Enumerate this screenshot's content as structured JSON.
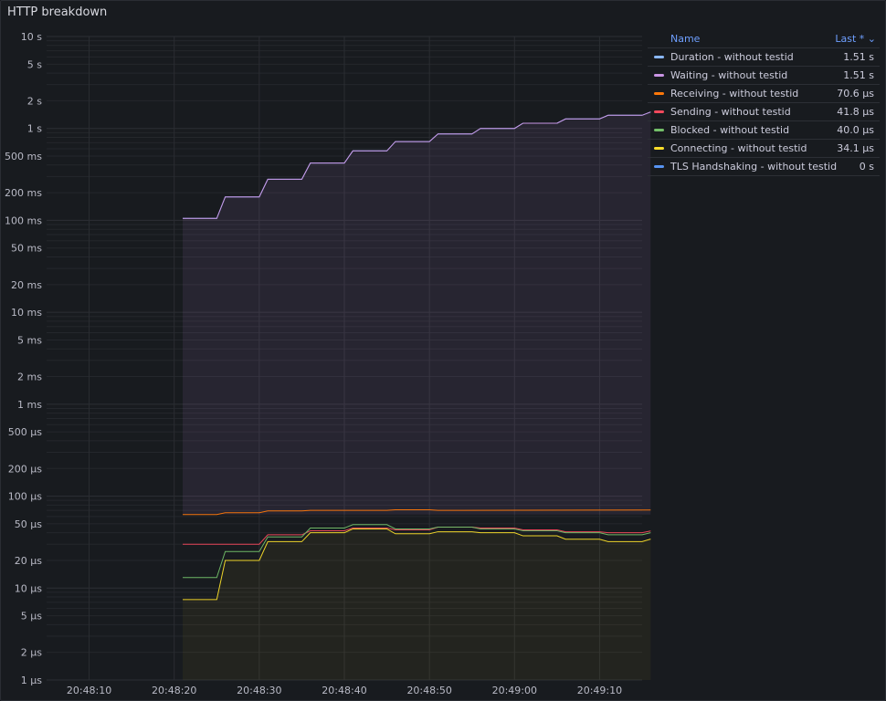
{
  "panel": {
    "title": "HTTP breakdown"
  },
  "legend": {
    "name_header": "Name",
    "last_header": "Last * ⌄",
    "items": [
      {
        "name": "Duration - without testid",
        "last": "1.51 s",
        "color": "#8ab8ff"
      },
      {
        "name": "Waiting - without testid",
        "last": "1.51 s",
        "color": "#ca95e5"
      },
      {
        "name": "Receiving - without testid",
        "last": "70.6 µs",
        "color": "#ff780a"
      },
      {
        "name": "Sending - without testid",
        "last": "41.8 µs",
        "color": "#f2495c"
      },
      {
        "name": "Blocked - without testid",
        "last": "40.0 µs",
        "color": "#73bf69"
      },
      {
        "name": "Connecting - without testid",
        "last": "34.1 µs",
        "color": "#fade2a"
      },
      {
        "name": "TLS Handshaking - without testid",
        "last": "0 s",
        "color": "#5794f2"
      }
    ]
  },
  "chart_data": {
    "type": "line",
    "title": "HTTP breakdown",
    "y_scale": "log",
    "ylim_seconds": [
      1e-06,
      10
    ],
    "y_ticks": [
      {
        "v": 10,
        "label": "10 s"
      },
      {
        "v": 5,
        "label": "5 s"
      },
      {
        "v": 2,
        "label": "2 s"
      },
      {
        "v": 1,
        "label": "1 s"
      },
      {
        "v": 0.5,
        "label": "500 ms"
      },
      {
        "v": 0.2,
        "label": "200 ms"
      },
      {
        "v": 0.1,
        "label": "100 ms"
      },
      {
        "v": 0.05,
        "label": "50 ms"
      },
      {
        "v": 0.02,
        "label": "20 ms"
      },
      {
        "v": 0.01,
        "label": "10 ms"
      },
      {
        "v": 0.005,
        "label": "5 ms"
      },
      {
        "v": 0.002,
        "label": "2 ms"
      },
      {
        "v": 0.001,
        "label": "1 ms"
      },
      {
        "v": 0.0005,
        "label": "500 µs"
      },
      {
        "v": 0.0002,
        "label": "200 µs"
      },
      {
        "v": 0.0001,
        "label": "100 µs"
      },
      {
        "v": 5e-05,
        "label": "50 µs"
      },
      {
        "v": 2e-05,
        "label": "20 µs"
      },
      {
        "v": 1e-05,
        "label": "10 µs"
      },
      {
        "v": 5e-06,
        "label": "5 µs"
      },
      {
        "v": 2e-06,
        "label": "2 µs"
      },
      {
        "v": 1e-06,
        "label": "1 µs"
      }
    ],
    "xlim": [
      "20:48:05",
      "20:49:15"
    ],
    "x_ticks": [
      "20:48:10",
      "20:48:20",
      "20:48:30",
      "20:48:40",
      "20:48:50",
      "20:49:00",
      "20:49:10"
    ],
    "grid": true,
    "legend_position": "right",
    "series": [
      {
        "name": "Duration - without testid",
        "color": "#8ab8ff",
        "fill": false,
        "points": [
          [
            "20:48:21",
            0.105
          ],
          [
            "20:48:25",
            0.105
          ],
          [
            "20:48:26",
            0.18
          ],
          [
            "20:48:30",
            0.18
          ],
          [
            "20:48:31",
            0.28
          ],
          [
            "20:48:35",
            0.28
          ],
          [
            "20:48:36",
            0.42
          ],
          [
            "20:48:40",
            0.42
          ],
          [
            "20:48:41",
            0.57
          ],
          [
            "20:48:45",
            0.57
          ],
          [
            "20:48:46",
            0.72
          ],
          [
            "20:48:50",
            0.72
          ],
          [
            "20:48:51",
            0.87
          ],
          [
            "20:48:55",
            0.87
          ],
          [
            "20:48:56",
            1.0
          ],
          [
            "20:49:00",
            1.0
          ],
          [
            "20:49:01",
            1.14
          ],
          [
            "20:49:05",
            1.14
          ],
          [
            "20:49:06",
            1.27
          ],
          [
            "20:49:10",
            1.27
          ],
          [
            "20:49:11",
            1.39
          ],
          [
            "20:49:15",
            1.39
          ],
          [
            "20:49:16",
            1.51
          ]
        ]
      },
      {
        "name": "Waiting - without testid",
        "color": "#ca95e5",
        "fill": true,
        "points": [
          [
            "20:48:21",
            0.105
          ],
          [
            "20:48:25",
            0.105
          ],
          [
            "20:48:26",
            0.18
          ],
          [
            "20:48:30",
            0.18
          ],
          [
            "20:48:31",
            0.28
          ],
          [
            "20:48:35",
            0.28
          ],
          [
            "20:48:36",
            0.42
          ],
          [
            "20:48:40",
            0.42
          ],
          [
            "20:48:41",
            0.57
          ],
          [
            "20:48:45",
            0.57
          ],
          [
            "20:48:46",
            0.72
          ],
          [
            "20:48:50",
            0.72
          ],
          [
            "20:48:51",
            0.87
          ],
          [
            "20:48:55",
            0.87
          ],
          [
            "20:48:56",
            1.0
          ],
          [
            "20:49:00",
            1.0
          ],
          [
            "20:49:01",
            1.14
          ],
          [
            "20:49:05",
            1.14
          ],
          [
            "20:49:06",
            1.27
          ],
          [
            "20:49:10",
            1.27
          ],
          [
            "20:49:11",
            1.39
          ],
          [
            "20:49:15",
            1.39
          ],
          [
            "20:49:16",
            1.51
          ]
        ]
      },
      {
        "name": "Receiving - without testid",
        "color": "#ff780a",
        "fill": false,
        "points": [
          [
            "20:48:21",
            6.3e-05
          ],
          [
            "20:48:25",
            6.3e-05
          ],
          [
            "20:48:26",
            6.6e-05
          ],
          [
            "20:48:30",
            6.6e-05
          ],
          [
            "20:48:31",
            6.9e-05
          ],
          [
            "20:48:35",
            6.9e-05
          ],
          [
            "20:48:36",
            7e-05
          ],
          [
            "20:48:45",
            7e-05
          ],
          [
            "20:48:46",
            7.1e-05
          ],
          [
            "20:48:50",
            7.1e-05
          ],
          [
            "20:48:51",
            7e-05
          ],
          [
            "20:49:16",
            7.06e-05
          ]
        ]
      },
      {
        "name": "Sending - without testid",
        "color": "#f2495c",
        "fill": false,
        "points": [
          [
            "20:48:21",
            3e-05
          ],
          [
            "20:48:30",
            3e-05
          ],
          [
            "20:48:31",
            3.8e-05
          ],
          [
            "20:48:35",
            3.8e-05
          ],
          [
            "20:48:36",
            4.2e-05
          ],
          [
            "20:48:40",
            4.2e-05
          ],
          [
            "20:48:41",
            4.5e-05
          ],
          [
            "20:48:45",
            4.5e-05
          ],
          [
            "20:48:46",
            4.3e-05
          ],
          [
            "20:48:50",
            4.3e-05
          ],
          [
            "20:48:51",
            4.6e-05
          ],
          [
            "20:48:55",
            4.6e-05
          ],
          [
            "20:48:56",
            4.5e-05
          ],
          [
            "20:49:00",
            4.5e-05
          ],
          [
            "20:49:01",
            4.3e-05
          ],
          [
            "20:49:05",
            4.3e-05
          ],
          [
            "20:49:06",
            4.1e-05
          ],
          [
            "20:49:10",
            4.1e-05
          ],
          [
            "20:49:11",
            4e-05
          ],
          [
            "20:49:15",
            4e-05
          ],
          [
            "20:49:16",
            4.18e-05
          ]
        ]
      },
      {
        "name": "Blocked - without testid",
        "color": "#73bf69",
        "fill": false,
        "points": [
          [
            "20:48:21",
            1.3e-05
          ],
          [
            "20:48:25",
            1.3e-05
          ],
          [
            "20:48:26",
            2.5e-05
          ],
          [
            "20:48:30",
            2.5e-05
          ],
          [
            "20:48:31",
            3.6e-05
          ],
          [
            "20:48:35",
            3.6e-05
          ],
          [
            "20:48:36",
            4.5e-05
          ],
          [
            "20:48:40",
            4.5e-05
          ],
          [
            "20:48:41",
            4.9e-05
          ],
          [
            "20:48:45",
            4.9e-05
          ],
          [
            "20:48:46",
            4.4e-05
          ],
          [
            "20:48:50",
            4.4e-05
          ],
          [
            "20:48:51",
            4.6e-05
          ],
          [
            "20:48:55",
            4.6e-05
          ],
          [
            "20:48:56",
            4.4e-05
          ],
          [
            "20:49:00",
            4.4e-05
          ],
          [
            "20:49:01",
            4.2e-05
          ],
          [
            "20:49:05",
            4.2e-05
          ],
          [
            "20:49:06",
            4e-05
          ],
          [
            "20:49:10",
            4e-05
          ],
          [
            "20:49:11",
            3.8e-05
          ],
          [
            "20:49:15",
            3.8e-05
          ],
          [
            "20:49:16",
            4e-05
          ]
        ]
      },
      {
        "name": "Connecting - without testid",
        "color": "#fade2a",
        "fill": true,
        "points": [
          [
            "20:48:21",
            7.5e-06
          ],
          [
            "20:48:25",
            7.5e-06
          ],
          [
            "20:48:26",
            2e-05
          ],
          [
            "20:48:30",
            2e-05
          ],
          [
            "20:48:31",
            3.2e-05
          ],
          [
            "20:48:35",
            3.2e-05
          ],
          [
            "20:48:36",
            4e-05
          ],
          [
            "20:48:40",
            4e-05
          ],
          [
            "20:48:41",
            4.4e-05
          ],
          [
            "20:48:45",
            4.4e-05
          ],
          [
            "20:48:46",
            3.9e-05
          ],
          [
            "20:48:50",
            3.9e-05
          ],
          [
            "20:48:51",
            4.1e-05
          ],
          [
            "20:48:55",
            4.1e-05
          ],
          [
            "20:48:56",
            4e-05
          ],
          [
            "20:49:00",
            4e-05
          ],
          [
            "20:49:01",
            3.7e-05
          ],
          [
            "20:49:05",
            3.7e-05
          ],
          [
            "20:49:06",
            3.4e-05
          ],
          [
            "20:49:10",
            3.4e-05
          ],
          [
            "20:49:11",
            3.2e-05
          ],
          [
            "20:49:15",
            3.2e-05
          ],
          [
            "20:49:16",
            3.41e-05
          ]
        ]
      }
    ]
  }
}
